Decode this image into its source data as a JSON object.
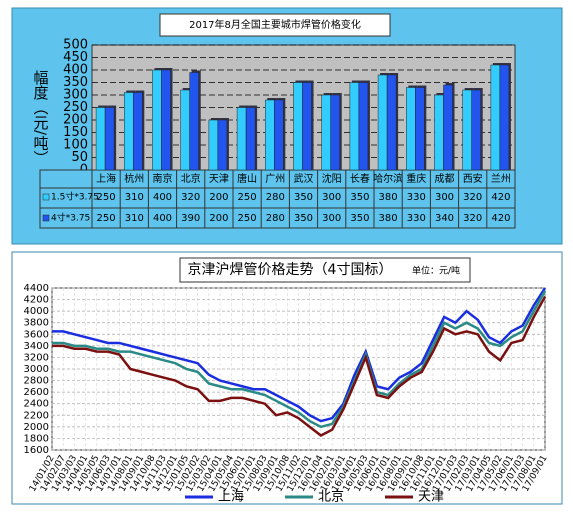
{
  "chart_data": [
    {
      "type": "bar",
      "title": "2017年8月全国主要城市焊管价格变化",
      "y_label": "幅度（元/吨）",
      "categories": [
        "上海",
        "杭州",
        "南京",
        "北京",
        "天津",
        "唐山",
        "广州",
        "武汉",
        "沈阳",
        "长春",
        "哈尔滨",
        "重庆",
        "成都",
        "西安",
        "兰州"
      ],
      "series": [
        {
          "name": "1.5寸*3.75",
          "color": "#33ccff",
          "values": [
            250,
            310,
            400,
            320,
            200,
            250,
            280,
            350,
            300,
            350,
            380,
            330,
            300,
            320,
            420
          ]
        },
        {
          "name": "4寸*3.75",
          "color": "#2255ee",
          "values": [
            250,
            310,
            400,
            390,
            200,
            250,
            280,
            350,
            300,
            350,
            380,
            330,
            340,
            320,
            420
          ]
        }
      ],
      "ylim": [
        0,
        500
      ],
      "yticks": [
        0,
        50,
        100,
        150,
        200,
        250,
        300,
        350,
        400,
        450,
        500
      ],
      "grid": true
    },
    {
      "type": "line",
      "title": "京津沪焊管价格走势（4寸国标）",
      "subtitle": "单位：元/吨",
      "categories": [
        "14/01/02",
        "14/02/07",
        "14/03/03",
        "14/04/01",
        "14/05/05",
        "14/06/03",
        "14/07/01",
        "14/08/01",
        "14/09/01",
        "14/10/08",
        "14/11/03",
        "14/12/01",
        "15/01/05",
        "15/02/02",
        "15/03/02",
        "15/04/01",
        "15/05/04",
        "15/06/01",
        "15/07/01",
        "15/08/03",
        "15/09/01",
        "15/10/08",
        "15/11/02",
        "15/12/01",
        "16/01/04",
        "16/02/01",
        "16/03/01",
        "16/04/01",
        "16/05/03",
        "16/06/01",
        "16/07/01",
        "16/08/01",
        "16/09/01",
        "16/10/08",
        "16/11/01",
        "16/12/01",
        "17/01/03",
        "17/02/03",
        "17/03/01",
        "17/04/05",
        "17/05/02",
        "17/06/01",
        "17/07/03",
        "17/08/01",
        "17/09/01"
      ],
      "series": [
        {
          "name": "上海",
          "color": "#1a2ee0",
          "values": [
            3650,
            3650,
            3600,
            3550,
            3500,
            3450,
            3450,
            3400,
            3350,
            3300,
            3250,
            3200,
            3150,
            3100,
            2900,
            2800,
            2750,
            2700,
            2650,
            2650,
            2550,
            2450,
            2350,
            2200,
            2100,
            2150,
            2400,
            2900,
            3300,
            2700,
            2650,
            2850,
            2950,
            3100,
            3500,
            3900,
            3800,
            4000,
            3850,
            3550,
            3450,
            3650,
            3750,
            4100,
            4400
          ]
        },
        {
          "name": "北京",
          "color": "#2a8a86",
          "values": [
            3450,
            3450,
            3400,
            3400,
            3350,
            3350,
            3300,
            3300,
            3250,
            3200,
            3150,
            3100,
            3000,
            2950,
            2750,
            2700,
            2650,
            2650,
            2600,
            2550,
            2450,
            2350,
            2250,
            2100,
            2000,
            2050,
            2350,
            2800,
            3250,
            2600,
            2550,
            2750,
            2900,
            3000,
            3400,
            3800,
            3700,
            3800,
            3700,
            3450,
            3400,
            3550,
            3650,
            4000,
            4350
          ]
        },
        {
          "name": "天津",
          "color": "#7a1010",
          "values": [
            3400,
            3400,
            3350,
            3350,
            3300,
            3300,
            3250,
            3000,
            2950,
            2900,
            2850,
            2800,
            2700,
            2650,
            2450,
            2450,
            2500,
            2500,
            2450,
            2400,
            2200,
            2250,
            2150,
            2000,
            1850,
            1950,
            2300,
            2750,
            3200,
            2550,
            2500,
            2700,
            2850,
            2950,
            3300,
            3700,
            3600,
            3650,
            3600,
            3300,
            3150,
            3450,
            3500,
            3900,
            4250
          ]
        }
      ],
      "ylim": [
        1600,
        4400
      ],
      "yticks": [
        1600,
        1800,
        2000,
        2200,
        2400,
        2600,
        2800,
        3000,
        3200,
        3400,
        3600,
        3800,
        4000,
        4200,
        4400
      ],
      "grid": true
    }
  ]
}
